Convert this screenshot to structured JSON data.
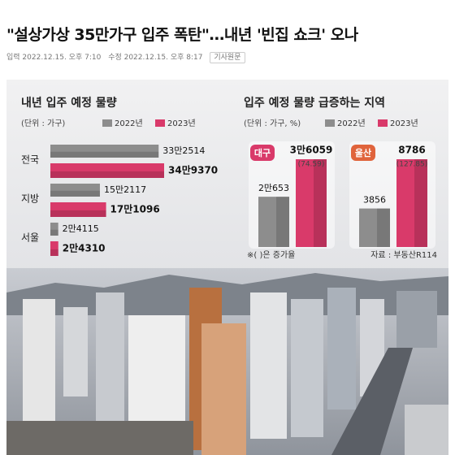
{
  "header": {
    "title": "\"설상가상 35만가구 입주 폭탄\"…내년 '빈집 쇼크' 오나",
    "published": "입력 2022.12.15. 오후 7:10",
    "modified": "수정 2022.12.15. 오후 8:17",
    "button": "기사원문"
  },
  "chart_data": [
    {
      "type": "hbar",
      "title": "내년 입주 예정 물량",
      "unit": "(단위 : 가구)",
      "categories": [
        "전국",
        "지방",
        "서울"
      ],
      "series": [
        {
          "name": "2022년",
          "color": "#8d8d8d",
          "values": [
            332514,
            152117,
            24115
          ],
          "value_labels": [
            "33만2514",
            "15만2117",
            "2만4115"
          ]
        },
        {
          "name": "2023년",
          "color": "#d93a6a",
          "values": [
            349370,
            171096,
            24310
          ],
          "value_labels": [
            "34만9370",
            "17만1096",
            "2만4310"
          ]
        }
      ]
    },
    {
      "type": "vbar",
      "title": "입주 예정 물량 급증하는 지역",
      "unit": "(단위 : 가구, %)",
      "categories": [
        "대구",
        "울산"
      ],
      "series": [
        {
          "name": "2022년",
          "color": "#8d8d8d",
          "values": [
            20653,
            3856
          ],
          "value_labels": [
            "2만653",
            "3856"
          ]
        },
        {
          "name": "2023년",
          "color": "#d93a6a",
          "values": [
            36059,
            8786
          ],
          "value_labels": [
            "3만6059",
            "8786"
          ]
        }
      ],
      "growth": [
        74.59,
        127.85
      ],
      "growth_labels": [
        "(74.59)",
        "(127.85)"
      ],
      "note": "※( )은 증가율",
      "source": "자료 : 부동산R114"
    }
  ]
}
